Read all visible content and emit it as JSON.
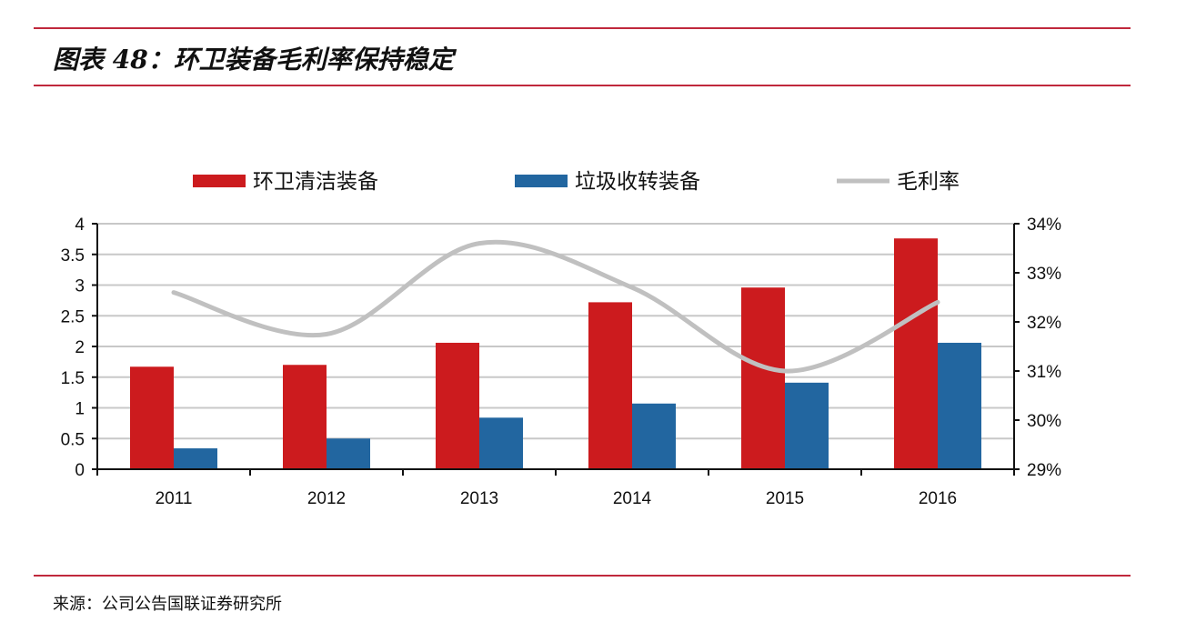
{
  "title": "图表 48：环卫装备毛利率保持稳定",
  "source": "来源：公司公告国联证券研究所",
  "chart_data": {
    "type": "bar+line",
    "title": "图表 48：环卫装备毛利率保持稳定",
    "categories": [
      "2011",
      "2012",
      "2013",
      "2014",
      "2015",
      "2016"
    ],
    "series": [
      {
        "name": "环卫清洁装备",
        "type": "bar",
        "axis": "left",
        "color": "#cc1b1e",
        "values": [
          1.67,
          1.7,
          2.06,
          2.72,
          2.96,
          3.76
        ]
      },
      {
        "name": "垃圾收转装备",
        "type": "bar",
        "axis": "left",
        "color": "#2266a0",
        "values": [
          0.34,
          0.5,
          0.84,
          1.07,
          1.41,
          2.06
        ]
      },
      {
        "name": "毛利率",
        "type": "line",
        "axis": "right",
        "color": "#c0c0c0",
        "values": [
          32.6,
          31.75,
          33.6,
          32.7,
          31.0,
          32.4
        ]
      }
    ],
    "ylim_left": [
      0,
      4
    ],
    "yticks_left": [
      "0",
      "0.5",
      "1",
      "1.5",
      "2",
      "2.5",
      "3",
      "3.5",
      "4"
    ],
    "ylim_right": [
      29,
      34
    ],
    "yticks_right": [
      "29%",
      "30%",
      "31%",
      "32%",
      "33%",
      "34%"
    ],
    "grid": true,
    "legend": "top"
  }
}
